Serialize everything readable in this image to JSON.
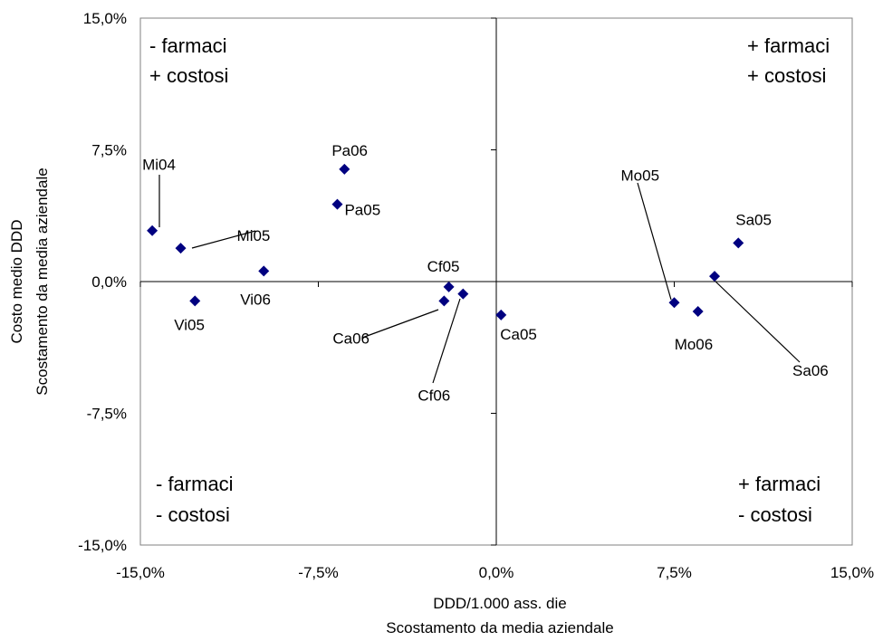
{
  "chart_data": {
    "type": "scatter",
    "title": "",
    "xlabel": [
      "DDD/1.000 ass. die",
      "Scostamento da media aziendale"
    ],
    "ylabel": [
      "Costo medio DDD",
      "Scostamento da media aziendale"
    ],
    "xlim": [
      -15,
      15
    ],
    "ylim": [
      -15,
      15
    ],
    "x_ticks": [
      -15,
      -7.5,
      0,
      7.5,
      15
    ],
    "x_tick_labels": [
      "-15,0%",
      "-7,5%",
      "0,0%",
      "7,5%",
      "15,0%"
    ],
    "y_ticks": [
      15,
      7.5,
      0,
      -7.5,
      -15
    ],
    "y_tick_labels": [
      "15,0%",
      "7,5%",
      "0,0%",
      "-7,5%",
      "-15,0%"
    ],
    "grid": false,
    "marker": "diamond",
    "marker_color": "#000080",
    "quadrant_labels": {
      "top_left": [
        "- farmaci",
        "+ costosi"
      ],
      "top_right": [
        "+ farmaci",
        "+ costosi"
      ],
      "bottom_left": [
        "- farmaci",
        "- costosi"
      ],
      "bottom_right": [
        "+ farmaci",
        "- costosi"
      ]
    },
    "points": [
      {
        "label": "Mi04",
        "x": -14.5,
        "y": 2.9
      },
      {
        "label": "Mi05",
        "x": -13.3,
        "y": 1.9
      },
      {
        "label": "Vi05",
        "x": -12.7,
        "y": -1.1
      },
      {
        "label": "Vi06",
        "x": -9.8,
        "y": 0.6
      },
      {
        "label": "Pa06",
        "x": -6.4,
        "y": 6.4
      },
      {
        "label": "Pa05",
        "x": -6.7,
        "y": 4.4
      },
      {
        "label": "Cf05",
        "x": -2.0,
        "y": -0.3
      },
      {
        "label": "Ca06",
        "x": -2.2,
        "y": -1.1
      },
      {
        "label": "Cf06",
        "x": -1.4,
        "y": -0.7
      },
      {
        "label": "Ca05",
        "x": 0.2,
        "y": -1.9
      },
      {
        "label": "Mo05",
        "x": 7.5,
        "y": -1.2
      },
      {
        "label": "Mo06",
        "x": 8.5,
        "y": -1.7
      },
      {
        "label": "Sa05",
        "x": 10.2,
        "y": 2.2
      },
      {
        "label": "Sa06",
        "x": 9.2,
        "y": 0.3
      }
    ]
  }
}
